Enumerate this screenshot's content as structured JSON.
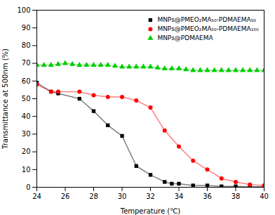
{
  "chart_data": {
    "type": "line",
    "xlabel": "Temperature (℃)",
    "ylabel": "Transmittance at 500nm (%)",
    "xlim": [
      24,
      40
    ],
    "ylim": [
      0,
      100
    ],
    "xticks": [
      24,
      26,
      28,
      30,
      32,
      34,
      36,
      38,
      40
    ],
    "yticks": [
      0,
      10,
      20,
      30,
      40,
      50,
      60,
      70,
      80,
      90,
      100
    ],
    "grid": false,
    "legend": "upper right",
    "series": [
      {
        "name": "MNPs@PMEO₂MA₅₀-PDMAEMA₅₀",
        "color": "#000000",
        "marker": "square",
        "x": [
          24,
          25,
          25.5,
          27,
          28,
          29,
          30,
          31,
          32,
          33,
          33.5,
          34,
          35,
          36,
          37,
          38,
          39,
          40
        ],
        "values": [
          59,
          54,
          53,
          50,
          43,
          35,
          29,
          12,
          7,
          3,
          2,
          2,
          1,
          1,
          0.5,
          0.5,
          0.3,
          0.3
        ]
      },
      {
        "name": "MNPs@PMEO₂MA₅₀-PDMAEMA₁₅₀",
        "color": "#FF0000",
        "marker": "circle",
        "x": [
          24,
          25,
          25.5,
          27,
          28,
          29,
          30,
          31,
          32,
          33,
          34,
          35,
          36,
          37,
          38,
          39,
          40
        ],
        "values": [
          58,
          54,
          54,
          54,
          52,
          51,
          51,
          49,
          45,
          32,
          23,
          15,
          10,
          5,
          3,
          1.5,
          1
        ]
      },
      {
        "name": "MNPs@PDMAEMA",
        "color": "#00CC00",
        "marker": "triangle",
        "x": [
          24,
          24.5,
          25,
          25.5,
          26,
          26.5,
          27,
          27.5,
          28,
          28.5,
          29,
          29.5,
          30,
          30.5,
          31,
          31.5,
          32,
          32.5,
          33,
          33.5,
          34,
          34.5,
          35,
          35.5,
          36,
          36.5,
          37,
          37.5,
          38,
          38.5,
          39,
          39.5,
          40
        ],
        "values": [
          69,
          69,
          69,
          69.5,
          70,
          69.5,
          69,
          69,
          69,
          69,
          69,
          68.5,
          68,
          68,
          68,
          68,
          68,
          67.5,
          67,
          67,
          67,
          66.5,
          66,
          66,
          66,
          66,
          66,
          66,
          66,
          66,
          66,
          66,
          66
        ]
      }
    ]
  }
}
